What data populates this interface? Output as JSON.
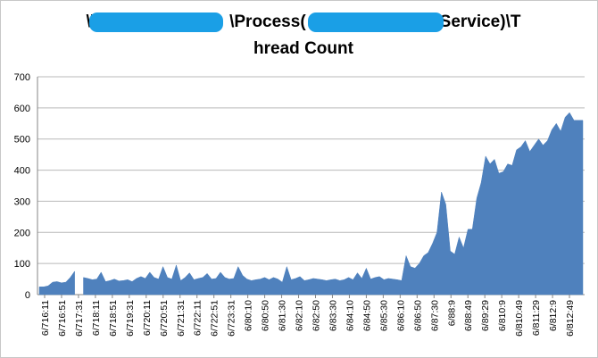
{
  "chart_data": {
    "type": "area",
    "title_lines": [
      "\\\\",
      "\\Process(",
      "Service)\\T",
      "hread Count"
    ],
    "xlabel": "",
    "ylabel": "",
    "ylim": [
      0,
      700
    ],
    "yticks": [
      0,
      100,
      200,
      300,
      400,
      500,
      600,
      700
    ],
    "grid": "horizontal",
    "legend": "none",
    "fill_color": "#4f81bd",
    "x_tick_labels": [
      "6/716:11",
      "6/716:51",
      "6/717:31",
      "6/718:11",
      "6/718:51",
      "6/719:31",
      "6/720:11",
      "6/720:51",
      "6/721:31",
      "6/722:11",
      "6/722:51",
      "6/723:31",
      "6/80:10",
      "6/80:50",
      "6/81:30",
      "6/82:10",
      "6/82:50",
      "6/83:30",
      "6/84:10",
      "6/84:50",
      "6/85:30",
      "6/86:10",
      "6/86:50",
      "6/87:30",
      "6/88:9",
      "6/88:49",
      "6/89:29",
      "6/810:9",
      "6/810:49",
      "6/811:29",
      "6/812:9",
      "6/812:49"
    ],
    "values": [
      25,
      25,
      28,
      40,
      42,
      38,
      40,
      55,
      75,
      null,
      55,
      52,
      48,
      50,
      72,
      42,
      45,
      50,
      44,
      45,
      48,
      42,
      52,
      58,
      52,
      72,
      55,
      50,
      90,
      55,
      50,
      95,
      45,
      55,
      70,
      48,
      52,
      55,
      68,
      50,
      52,
      72,
      55,
      50,
      52,
      90,
      62,
      50,
      45,
      48,
      50,
      55,
      48,
      55,
      50,
      40,
      90,
      48,
      52,
      58,
      45,
      48,
      52,
      50,
      48,
      45,
      48,
      50,
      45,
      48,
      55,
      48,
      70,
      52,
      85,
      50,
      55,
      58,
      48,
      52,
      50,
      48,
      45,
      125,
      90,
      85,
      100,
      125,
      135,
      165,
      200,
      330,
      290,
      140,
      130,
      185,
      150,
      210,
      210,
      310,
      360,
      445,
      420,
      435,
      390,
      395,
      420,
      415,
      465,
      475,
      495,
      460,
      480,
      500,
      480,
      495,
      530,
      550,
      525,
      570,
      585,
      560,
      560,
      560
    ]
  }
}
